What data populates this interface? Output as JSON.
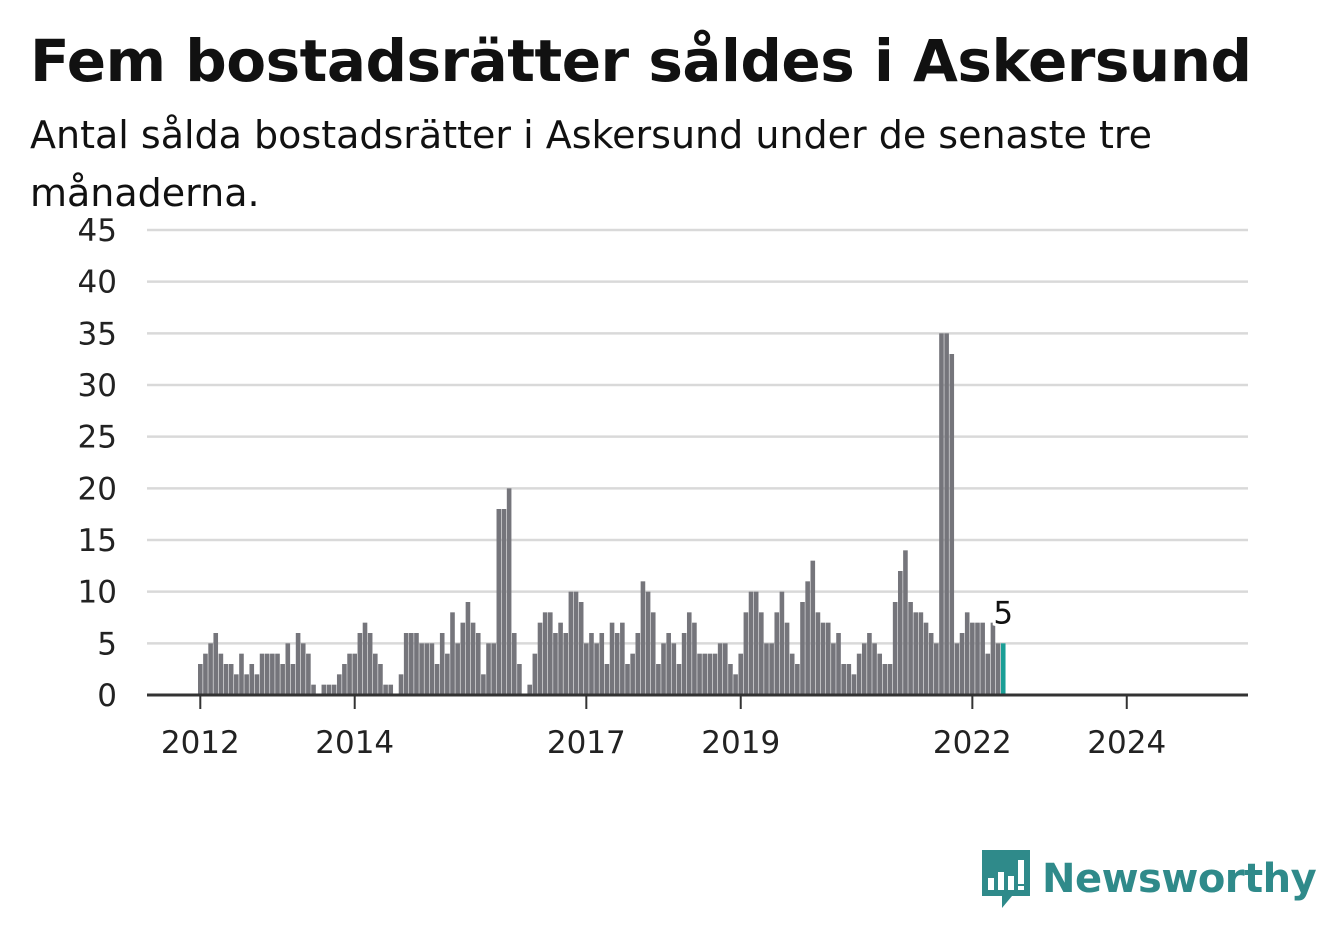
{
  "title": "Fem bostadsrätter såldes i Askersund",
  "subtitle": "Antal sålda bostadsrätter i Askersund under de senaste tre månaderna.",
  "brand": {
    "name": "Newsworthy",
    "icon": "bar-chart-speech-bubble-icon",
    "color": "#2f8a8a"
  },
  "colors": {
    "bar": "#75757b",
    "highlight": "#1a9e96",
    "grid": "#d9d9d9",
    "axis": "#333333"
  },
  "chart_data": {
    "type": "bar",
    "title": "Fem bostadsrätter såldes i Askersund",
    "xlabel": "",
    "ylabel": "",
    "ylim": [
      0,
      45
    ],
    "yticks": [
      0,
      5,
      10,
      15,
      20,
      25,
      30,
      35,
      40,
      45
    ],
    "xticks": [
      {
        "label": "2012",
        "index": 0
      },
      {
        "label": "2014",
        "index": 30
      },
      {
        "label": "2017",
        "index": 75
      },
      {
        "label": "2019",
        "index": 105
      },
      {
        "label": "2022",
        "index": 150
      },
      {
        "label": "2024",
        "index": 180
      }
    ],
    "grid": true,
    "highlight_last": true,
    "last_label": "5",
    "values": [
      3,
      4,
      5,
      6,
      4,
      3,
      3,
      2,
      4,
      2,
      3,
      2,
      4,
      4,
      4,
      4,
      3,
      5,
      3,
      6,
      5,
      4,
      1,
      0,
      1,
      1,
      1,
      2,
      3,
      4,
      4,
      6,
      7,
      6,
      4,
      3,
      1,
      1,
      0,
      2,
      6,
      6,
      6,
      5,
      5,
      5,
      3,
      6,
      4,
      8,
      5,
      7,
      9,
      7,
      6,
      2,
      5,
      5,
      18,
      18,
      20,
      6,
      3,
      0,
      1,
      4,
      7,
      8,
      8,
      6,
      7,
      6,
      10,
      10,
      9,
      5,
      6,
      5,
      6,
      3,
      7,
      6,
      7,
      3,
      4,
      6,
      11,
      10,
      8,
      3,
      5,
      6,
      5,
      3,
      6,
      8,
      7,
      4,
      4,
      4,
      4,
      5,
      5,
      3,
      2,
      4,
      8,
      10,
      10,
      8,
      5,
      5,
      8,
      10,
      7,
      4,
      3,
      9,
      11,
      13,
      8,
      7,
      7,
      5,
      6,
      3,
      3,
      2,
      4,
      5,
      6,
      5,
      4,
      3,
      3,
      9,
      12,
      14,
      9,
      8,
      8,
      7,
      6,
      5,
      35,
      35,
      33,
      5,
      6,
      8,
      7,
      7,
      7,
      4,
      7,
      5,
      5
    ]
  }
}
